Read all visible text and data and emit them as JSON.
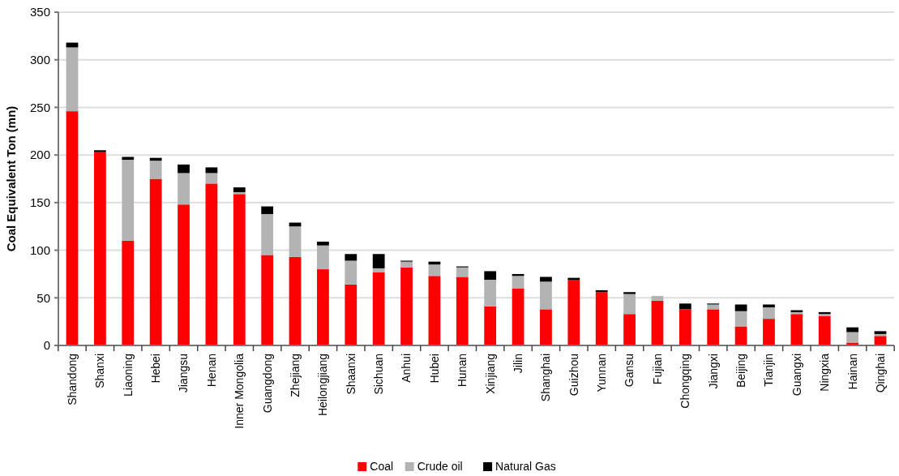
{
  "chart_data": {
    "type": "bar",
    "stacked": true,
    "ylabel": "Coal Equivalent Ton (mn)",
    "categories": [
      "Shandong",
      "Shanxi",
      "Liaoning",
      "Hebei",
      "Jiangsu",
      "Henan",
      "Inner Mongolia",
      "Guangdong",
      "Zhejiang",
      "Heilongjiang",
      "Shaanxi",
      "Sichuan",
      "Anhui",
      "Hubei",
      "Hunan",
      "Xinjiang",
      "Jilin",
      "Shanghai",
      "Guizhou",
      "Yunnan",
      "Gansu",
      "Fujian",
      "Chongqing",
      "Jiangxi",
      "Beijing",
      "Tianjin",
      "Guangxi",
      "Ningxia",
      "Hainan",
      "Qinghai"
    ],
    "series": [
      {
        "name": "Coal",
        "color": "#ff0000",
        "values": [
          246,
          203,
          110,
          175,
          148,
          170,
          159,
          95,
          93,
          80,
          64,
          77,
          82,
          73,
          72,
          41,
          60,
          38,
          69,
          56,
          33,
          47,
          38,
          38,
          20,
          28,
          33,
          31,
          3,
          10
        ]
      },
      {
        "name": "Crude oil",
        "color": "#b3b3b3",
        "values": [
          67,
          0,
          85,
          19,
          33,
          11,
          2,
          43,
          32,
          25,
          25,
          4,
          6,
          12,
          10,
          28,
          13,
          29,
          0,
          0,
          21,
          5,
          0,
          5,
          16,
          12,
          2,
          2,
          11,
          2
        ]
      },
      {
        "name": "Natural Gas",
        "color": "#000000",
        "values": [
          5,
          2,
          3,
          3,
          9,
          6,
          5,
          8,
          4,
          4,
          7,
          15,
          1,
          3,
          1,
          9,
          2,
          5,
          2,
          2,
          2,
          0,
          6,
          1,
          7,
          3,
          2,
          2,
          5,
          3
        ]
      }
    ],
    "ylim": [
      0,
      350
    ],
    "yticks": [
      0,
      50,
      100,
      150,
      200,
      250,
      300,
      350
    ],
    "grid": "y",
    "legend": "bottom"
  }
}
